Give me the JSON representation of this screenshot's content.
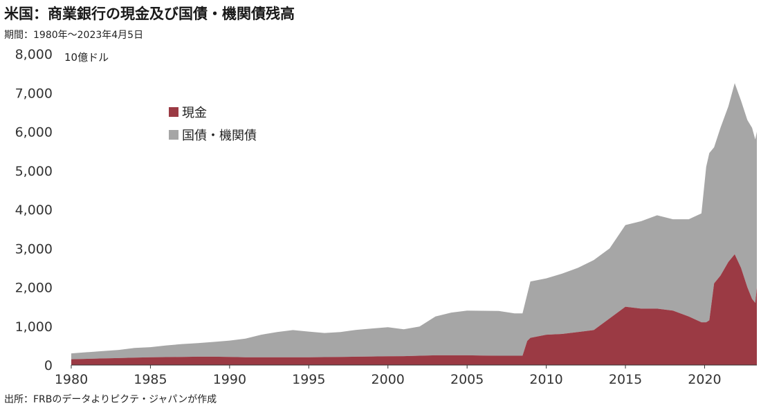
{
  "title": "米国：商業銀行の現金及び国債・機関債残高",
  "subtitle": "期間：1980年～2023年4月5日",
  "source": "出所：FRBのデータよりピクテ・ジャパンが作成",
  "chart_data": {
    "type": "area",
    "stacked": true,
    "unit_label": "10億ドル",
    "ylim": [
      0,
      8000
    ],
    "y_ticks": [
      0,
      1000,
      2000,
      3000,
      4000,
      5000,
      6000,
      7000,
      8000
    ],
    "y_tick_labels": [
      "0",
      "1,000",
      "2,000",
      "3,000",
      "4,000",
      "5,000",
      "6,000",
      "7,000",
      "8,000"
    ],
    "xlim": [
      1980,
      2023.3
    ],
    "x_ticks": [
      1980,
      1985,
      1990,
      1995,
      2000,
      2005,
      2010,
      2015,
      2020
    ],
    "x_tick_labels": [
      "1980",
      "1985",
      "1990",
      "1995",
      "2000",
      "2005",
      "2010",
      "2015",
      "2020"
    ],
    "grid": false,
    "legend_position": "upper-left",
    "x": [
      1980,
      1981,
      1982,
      1983,
      1984,
      1985,
      1986,
      1987,
      1988,
      1989,
      1990,
      1991,
      1992,
      1993,
      1994,
      1995,
      1996,
      1997,
      1998,
      1999,
      2000,
      2001,
      2002,
      2003,
      2004,
      2005,
      2006,
      2007,
      2008,
      2008.5,
      2008.8,
      2009,
      2010,
      2011,
      2012,
      2013,
      2014,
      2015,
      2016,
      2017,
      2018,
      2019,
      2019.8,
      2020.1,
      2020.3,
      2020.6,
      2021,
      2021.5,
      2021.9,
      2022.3,
      2022.7,
      2023,
      2023.2,
      2023.3
    ],
    "series": [
      {
        "name": "現金",
        "color": "#9b3a44",
        "values": [
          150,
          160,
          170,
          180,
          190,
          200,
          205,
          210,
          215,
          215,
          210,
          200,
          200,
          200,
          200,
          200,
          205,
          210,
          215,
          220,
          225,
          230,
          240,
          250,
          250,
          250,
          245,
          240,
          240,
          240,
          620,
          700,
          780,
          800,
          850,
          900,
          1200,
          1500,
          1450,
          1450,
          1400,
          1250,
          1100,
          1100,
          1150,
          2100,
          2300,
          2650,
          2850,
          2500,
          2000,
          1700,
          1600,
          2000
        ]
      },
      {
        "name": "国債・機関債",
        "color": "#a6a6a6",
        "values": [
          150,
          170,
          190,
          210,
          250,
          260,
          300,
          330,
          350,
          380,
          420,
          480,
          580,
          650,
          700,
          660,
          620,
          640,
          690,
          720,
          750,
          690,
          750,
          1000,
          1100,
          1150,
          1150,
          1150,
          1090,
          1090,
          1200,
          1450,
          1450,
          1550,
          1650,
          1800,
          1800,
          2100,
          2250,
          2400,
          2350,
          2500,
          2800,
          4000,
          4300,
          3500,
          3800,
          4000,
          4400,
          4300,
          4300,
          4400,
          4200,
          4000
        ]
      }
    ]
  }
}
